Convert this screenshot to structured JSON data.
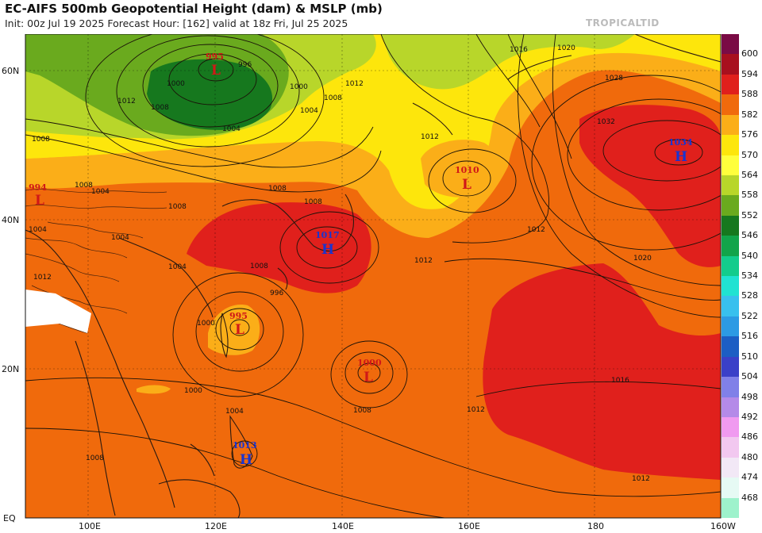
{
  "header": {
    "title": "EC-AIFS 500mb Geopotential Height (dam) & MSLP (mb)",
    "subtitle": "Init: 00z Jul 19 2025   Forecast Hour: [162]   valid at 18z Fri, Jul 25 2025",
    "watermark": "TROPICALTID"
  },
  "axes": {
    "lat_labels": [
      "60N",
      "40N",
      "20N",
      "EQ"
    ],
    "lon_labels": [
      "100E",
      "120E",
      "140E",
      "160E",
      "180",
      "160W"
    ]
  },
  "colorbar": {
    "levels": [
      "600",
      "594",
      "588",
      "582",
      "576",
      "570",
      "564",
      "558",
      "552",
      "546",
      "540",
      "534",
      "528",
      "522",
      "516",
      "510",
      "504",
      "498",
      "492",
      "486",
      "480",
      "474",
      "468"
    ],
    "colors": [
      "#7a0b45",
      "#a8101e",
      "#e0201c",
      "#f06a0c",
      "#fbae18",
      "#fde60c",
      "#ffff3c",
      "#b8d62a",
      "#6aaa1e",
      "#16781e",
      "#12a44a",
      "#13cc8c",
      "#20e2d2",
      "#38c0ee",
      "#2c9ae4",
      "#1c5ec4",
      "#3a40c8",
      "#8080e8",
      "#b48ae8",
      "#f09af0",
      "#f2c8f0",
      "#f2e8f6",
      "#e6faf4",
      "#9ef2cc"
    ]
  },
  "pressure_centers": [
    {
      "type": "L",
      "value": "995"
    },
    {
      "type": "L",
      "value": "994"
    },
    {
      "type": "H",
      "value": "1017"
    },
    {
      "type": "L",
      "value": "1010"
    },
    {
      "type": "H",
      "value": "1034"
    },
    {
      "type": "L",
      "value": "995"
    },
    {
      "type": "L",
      "value": "1000"
    },
    {
      "type": "H",
      "value": "1013"
    }
  ],
  "isobar_labels": [
    "996",
    "1000",
    "1004",
    "1008",
    "1012",
    "1008",
    "1004",
    "1000",
    "1004",
    "1004",
    "1008",
    "1008",
    "1012",
    "1016",
    "1020",
    "1028",
    "1032",
    "1020",
    "1016",
    "1012",
    "1012",
    "1012",
    "1008",
    "1000",
    "1004",
    "1008",
    "1012",
    "1008",
    "1004",
    "1008",
    "1012",
    "1008",
    "1012",
    "1004",
    "1008",
    "1000",
    "996"
  ]
}
